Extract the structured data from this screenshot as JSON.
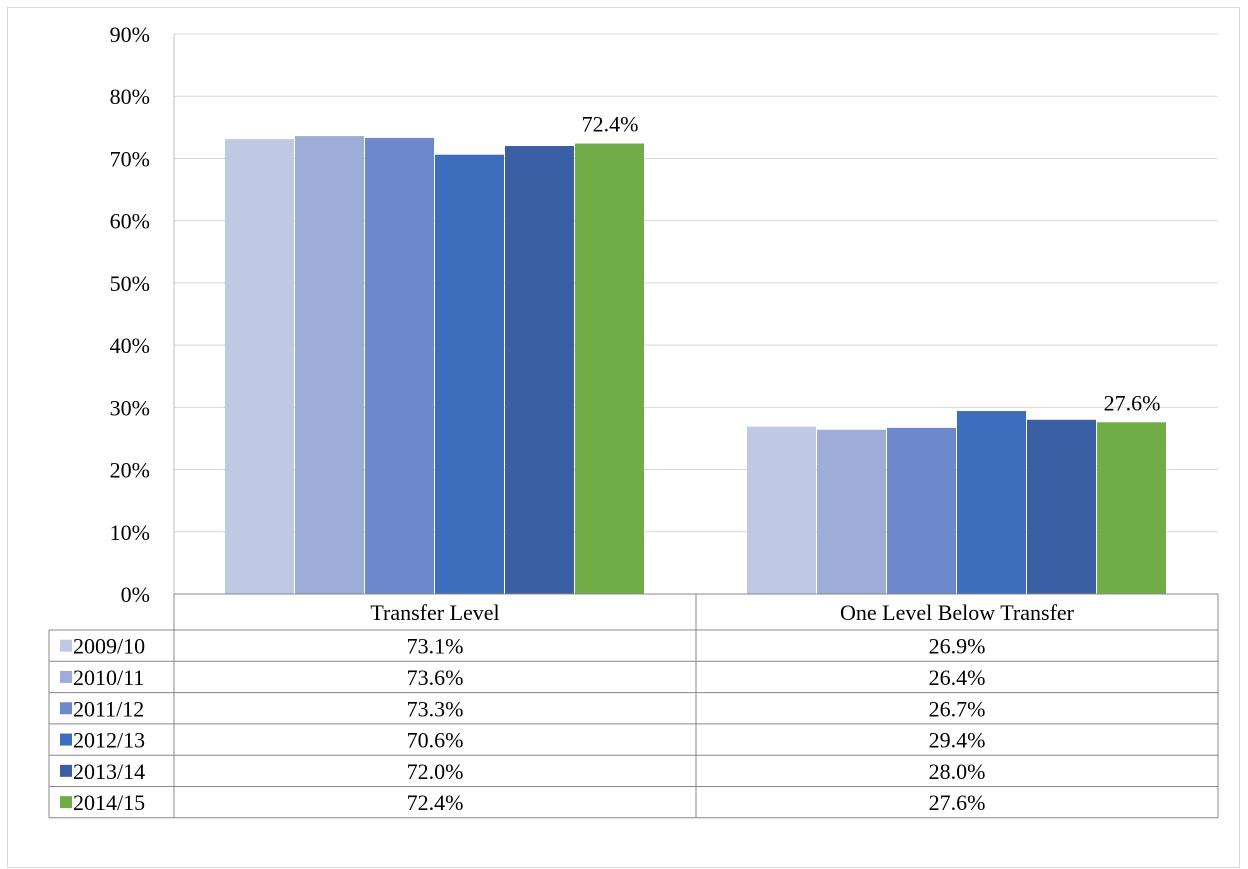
{
  "chart_data": {
    "type": "bar",
    "title": "",
    "xlabel": "",
    "ylabel": "",
    "categories": [
      "Transfer Level",
      "One Level Below Transfer"
    ],
    "ylim": [
      0,
      90
    ],
    "yticks": [
      0,
      10,
      20,
      30,
      40,
      50,
      60,
      70,
      80,
      90
    ],
    "ytick_labels": [
      "0%",
      "10%",
      "20%",
      "30%",
      "40%",
      "50%",
      "60%",
      "70%",
      "80%",
      "90%"
    ],
    "grid": true,
    "legend": "data-table-below",
    "series": [
      {
        "name": "2009/10",
        "color": "#c0c9e3",
        "values": [
          73.1,
          26.9
        ],
        "labels": [
          "73.1%",
          "26.9%"
        ]
      },
      {
        "name": "2010/11",
        "color": "#9eadd8",
        "values": [
          73.6,
          26.4
        ],
        "labels": [
          "73.6%",
          "26.4%"
        ]
      },
      {
        "name": "2011/12",
        "color": "#6e89cb",
        "values": [
          73.3,
          26.7
        ],
        "labels": [
          "73.3%",
          "26.7%"
        ]
      },
      {
        "name": "2012/13",
        "color": "#3d6dbd",
        "values": [
          70.6,
          29.4
        ],
        "labels": [
          "70.6%",
          "29.4%"
        ]
      },
      {
        "name": "2013/14",
        "color": "#3a5fa5",
        "values": [
          72.0,
          28.0
        ],
        "labels": [
          "72.0%",
          "28.0%"
        ]
      },
      {
        "name": "2014/15",
        "color": "#70ad47",
        "values": [
          72.4,
          27.6
        ],
        "labels": [
          "72.4%",
          "27.6%"
        ]
      }
    ],
    "annotations": [
      {
        "series": "2014/15",
        "category": "Transfer Level",
        "text": "72.4%"
      },
      {
        "series": "2014/15",
        "category": "One Level Below Transfer",
        "text": "27.6%"
      }
    ]
  }
}
